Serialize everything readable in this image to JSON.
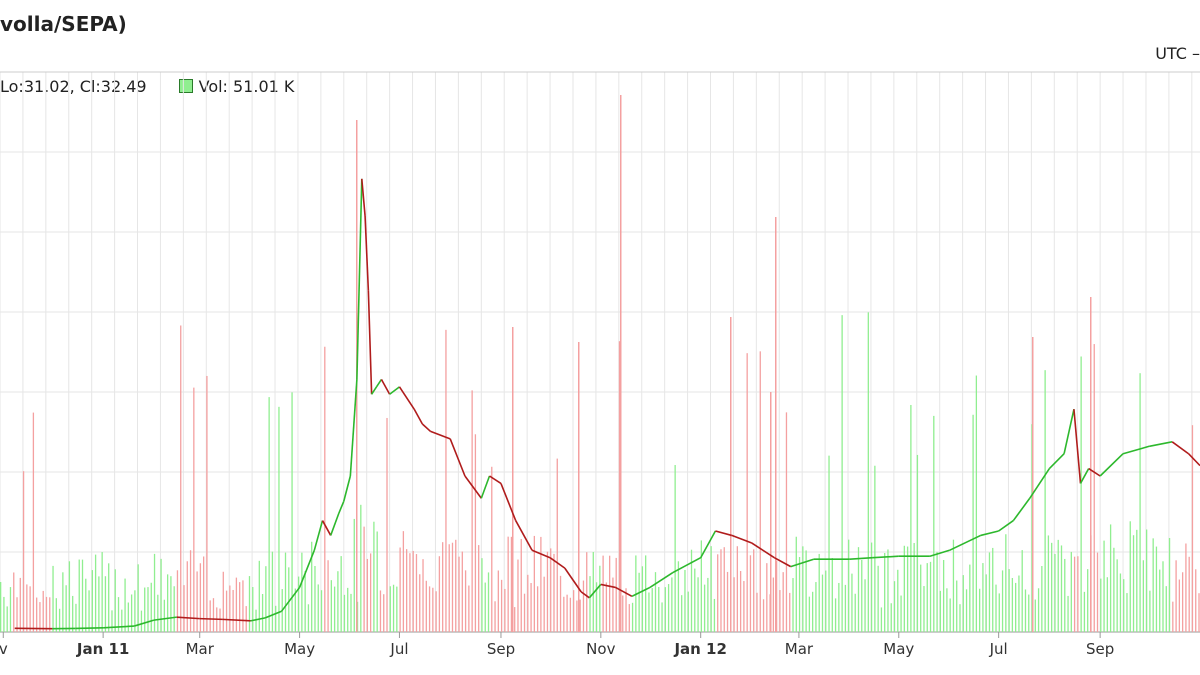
{
  "header": {
    "title": "volla/SEPA)",
    "timezone": "UTC –",
    "ohlc_readout": "Lo:31.02, Cl:32.49",
    "volume_readout": "Vol: 51.01 K"
  },
  "colors": {
    "volume_up": "#90ee90",
    "volume_down": "#f4a0a0",
    "price_up": "#2db82d",
    "price_down": "#b01c1c",
    "grid": "#e6e6e6",
    "axis": "#cccccc"
  },
  "chart_data": {
    "type": "line",
    "series": [
      {
        "points": [
          [
            "2010-11-08",
            0.25
          ],
          [
            "2010-12-01",
            0.22
          ],
          [
            "2010-12-15",
            0.24
          ],
          [
            "2011-01-01",
            0.28
          ],
          [
            "2011-01-20",
            0.4
          ],
          [
            "2011-02-01",
            0.8
          ],
          [
            "2011-02-15",
            1.0
          ],
          [
            "2011-03-01",
            0.9
          ],
          [
            "2011-03-15",
            0.85
          ],
          [
            "2011-04-01",
            0.75
          ],
          [
            "2011-04-10",
            0.95
          ],
          [
            "2011-04-20",
            1.4
          ],
          [
            "2011-05-01",
            3.0
          ],
          [
            "2011-05-10",
            5.5
          ],
          [
            "2011-05-15",
            7.5
          ],
          [
            "2011-05-20",
            6.5
          ],
          [
            "2011-05-25",
            8.0
          ],
          [
            "2011-05-28",
            8.8
          ],
          [
            "2011-06-01",
            10.5
          ],
          [
            "2011-06-05",
            17.0
          ],
          [
            "2011-06-08",
            30.5
          ],
          [
            "2011-06-10",
            28.0
          ],
          [
            "2011-06-12",
            23.0
          ],
          [
            "2011-06-14",
            16.0
          ],
          [
            "2011-06-17",
            16.5
          ],
          [
            "2011-06-20",
            17.0
          ],
          [
            "2011-06-25",
            16.0
          ],
          [
            "2011-07-01",
            16.5
          ],
          [
            "2011-07-10",
            15.0
          ],
          [
            "2011-07-15",
            14.0
          ],
          [
            "2011-07-20",
            13.5
          ],
          [
            "2011-08-01",
            13.0
          ],
          [
            "2011-08-10",
            10.5
          ],
          [
            "2011-08-20",
            9.0
          ],
          [
            "2011-08-25",
            10.5
          ],
          [
            "2011-09-01",
            10.0
          ],
          [
            "2011-09-10",
            7.5
          ],
          [
            "2011-09-20",
            5.5
          ],
          [
            "2011-10-01",
            5.0
          ],
          [
            "2011-10-10",
            4.3
          ],
          [
            "2011-10-20",
            2.7
          ],
          [
            "2011-10-25",
            2.3
          ],
          [
            "2011-11-01",
            3.2
          ],
          [
            "2011-11-10",
            3.0
          ],
          [
            "2011-11-20",
            2.4
          ],
          [
            "2011-12-01",
            3.0
          ],
          [
            "2011-12-15",
            4.0
          ],
          [
            "2012-01-01",
            5.0
          ],
          [
            "2012-01-10",
            6.8
          ],
          [
            "2012-01-20",
            6.5
          ],
          [
            "2012-02-01",
            6.0
          ],
          [
            "2012-02-15",
            5.0
          ],
          [
            "2012-02-25",
            4.4
          ],
          [
            "2012-03-10",
            4.9
          ],
          [
            "2012-04-01",
            4.9
          ],
          [
            "2012-04-15",
            5.0
          ],
          [
            "2012-05-01",
            5.1
          ],
          [
            "2012-05-20",
            5.1
          ],
          [
            "2012-06-01",
            5.5
          ],
          [
            "2012-06-20",
            6.5
          ],
          [
            "2012-07-01",
            6.8
          ],
          [
            "2012-07-10",
            7.5
          ],
          [
            "2012-07-20",
            9.0
          ],
          [
            "2012-08-01",
            11.0
          ],
          [
            "2012-08-10",
            12.0
          ],
          [
            "2012-08-16",
            15.0
          ],
          [
            "2012-08-20",
            10.0
          ],
          [
            "2012-08-25",
            11.0
          ],
          [
            "2012-09-01",
            10.5
          ],
          [
            "2012-09-15",
            12.0
          ],
          [
            "2012-10-01",
            12.5
          ],
          [
            "2012-10-15",
            12.8
          ],
          [
            "2012-10-25",
            12.0
          ],
          [
            "2012-11-01",
            11.2
          ]
        ]
      }
    ],
    "volume": {
      "note_series": "daily volume bars",
      "values_relative_max": 1.0
    },
    "x_axis": {
      "type": "date",
      "range": [
        "2010-10-30",
        "2012-11-01"
      ],
      "ticks": [
        {
          "date": "2010-11-01",
          "label": "v",
          "bold": false
        },
        {
          "date": "2011-01-01",
          "label": "Jan 11",
          "bold": true
        },
        {
          "date": "2011-03-01",
          "label": "Mar",
          "bold": false
        },
        {
          "date": "2011-05-01",
          "label": "May",
          "bold": false
        },
        {
          "date": "2011-07-01",
          "label": "Jul",
          "bold": false
        },
        {
          "date": "2011-09-01",
          "label": "Sep",
          "bold": false
        },
        {
          "date": "2011-11-01",
          "label": "Nov",
          "bold": false
        },
        {
          "date": "2012-01-01",
          "label": "Jan 12",
          "bold": true
        },
        {
          "date": "2012-03-01",
          "label": "Mar",
          "bold": false
        },
        {
          "date": "2012-05-01",
          "label": "May",
          "bold": false
        },
        {
          "date": "2012-07-01",
          "label": "Jul",
          "bold": false
        },
        {
          "date": "2012-09-01",
          "label": "Sep",
          "bold": false
        }
      ]
    },
    "y_axis": {
      "range": [
        0,
        35
      ],
      "labels_visible": false
    },
    "grid": true
  }
}
